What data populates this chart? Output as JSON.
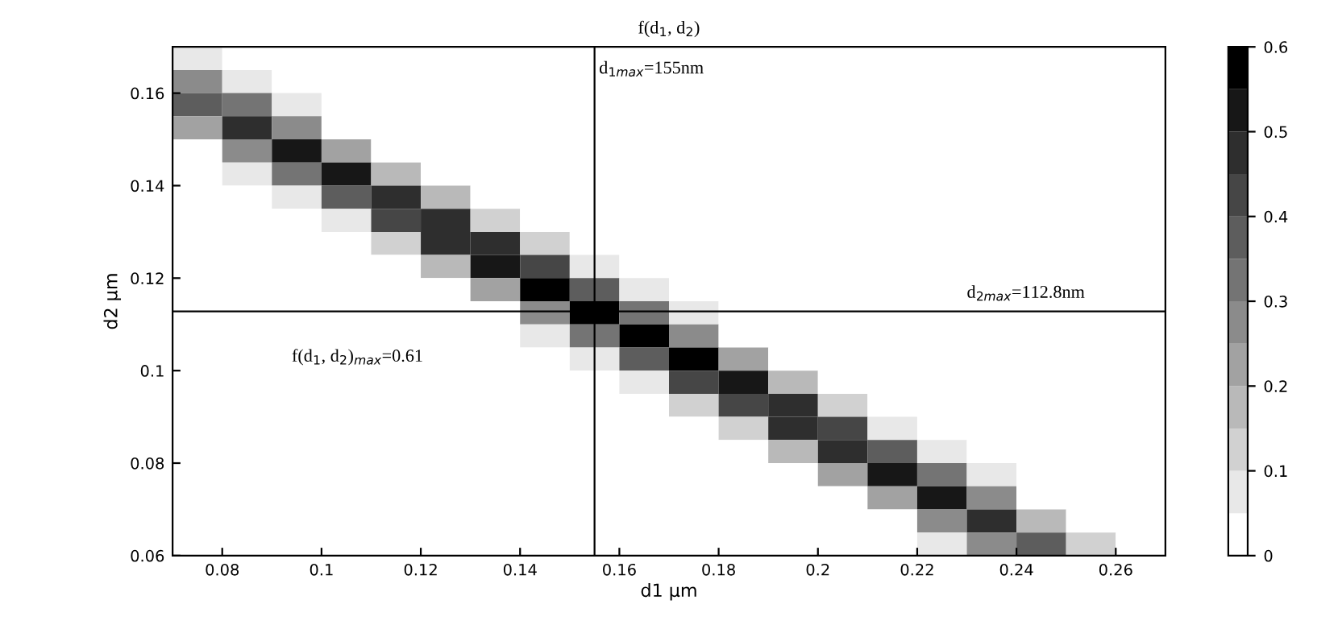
{
  "chart_data": {
    "type": "heatmap",
    "title": "f(d$_{1}$, d$_{2}$)",
    "xlabel": "d1 µm",
    "ylabel": "d2 µm",
    "x": [
      0.075,
      0.085,
      0.095,
      0.105,
      0.115,
      0.125,
      0.135,
      0.145,
      0.155,
      0.165,
      0.175,
      0.185,
      0.195,
      0.205,
      0.215,
      0.225,
      0.235,
      0.245,
      0.255,
      0.265
    ],
    "y": [
      0.1675,
      0.1625,
      0.1575,
      0.1525,
      0.1475,
      0.1425,
      0.1375,
      0.1325,
      0.1275,
      0.1225,
      0.1175,
      0.1125,
      0.1075,
      0.1025,
      0.0975,
      0.0925,
      0.0875,
      0.0825,
      0.0775,
      0.0725,
      0.0675,
      0.0625
    ],
    "cells": [
      [
        0.06,
        0,
        0,
        0,
        0,
        0,
        0,
        0,
        0,
        0,
        0,
        0,
        0,
        0,
        0,
        0,
        0,
        0,
        0,
        0
      ],
      [
        0.28,
        0.06,
        0,
        0,
        0,
        0,
        0,
        0,
        0,
        0,
        0,
        0,
        0,
        0,
        0,
        0,
        0,
        0,
        0,
        0
      ],
      [
        0.39,
        0.3,
        0.05,
        0,
        0,
        0,
        0,
        0,
        0,
        0,
        0,
        0,
        0,
        0,
        0,
        0,
        0,
        0,
        0,
        0
      ],
      [
        0.2,
        0.48,
        0.28,
        0.04,
        0,
        0,
        0,
        0,
        0,
        0,
        0,
        0,
        0,
        0,
        0,
        0,
        0,
        0,
        0,
        0
      ],
      [
        0.03,
        0.28,
        0.51,
        0.24,
        0.02,
        0,
        0,
        0,
        0,
        0,
        0,
        0,
        0,
        0,
        0,
        0,
        0,
        0,
        0,
        0
      ],
      [
        0,
        0.05,
        0.34,
        0.5,
        0.19,
        0.02,
        0,
        0,
        0,
        0,
        0,
        0,
        0,
        0,
        0,
        0,
        0,
        0,
        0,
        0
      ],
      [
        0,
        0,
        0.07,
        0.38,
        0.48,
        0.16,
        0.01,
        0,
        0,
        0,
        0,
        0,
        0,
        0,
        0,
        0,
        0,
        0,
        0,
        0
      ],
      [
        0,
        0,
        0,
        0.09,
        0.43,
        0.47,
        0.13,
        0.01,
        0,
        0,
        0,
        0,
        0,
        0,
        0,
        0,
        0,
        0,
        0,
        0
      ],
      [
        0,
        0,
        0,
        0.01,
        0.12,
        0.47,
        0.46,
        0.1,
        0,
        0,
        0,
        0,
        0,
        0,
        0,
        0,
        0,
        0,
        0,
        0
      ],
      [
        0,
        0,
        0,
        0,
        0.01,
        0.17,
        0.54,
        0.42,
        0.08,
        0,
        0,
        0,
        0,
        0,
        0,
        0,
        0,
        0,
        0,
        0
      ],
      [
        0,
        0,
        0,
        0,
        0,
        0.02,
        0.23,
        0.58,
        0.38,
        0.06,
        0,
        0,
        0,
        0,
        0,
        0,
        0,
        0,
        0,
        0
      ],
      [
        0,
        0,
        0,
        0,
        0,
        0,
        0.03,
        0.28,
        0.61,
        0.32,
        0.05,
        0,
        0,
        0,
        0,
        0,
        0,
        0,
        0,
        0
      ],
      [
        0,
        0,
        0,
        0,
        0,
        0,
        0,
        0.05,
        0.34,
        0.58,
        0.27,
        0.03,
        0,
        0,
        0,
        0,
        0,
        0,
        0,
        0
      ],
      [
        0,
        0,
        0,
        0,
        0,
        0,
        0,
        0,
        0.07,
        0.38,
        0.56,
        0.2,
        0.02,
        0,
        0,
        0,
        0,
        0,
        0,
        0
      ],
      [
        0,
        0,
        0,
        0,
        0,
        0,
        0,
        0,
        0,
        0.08,
        0.42,
        0.5,
        0.16,
        0.01,
        0,
        0,
        0,
        0,
        0,
        0
      ],
      [
        0,
        0,
        0,
        0,
        0,
        0,
        0,
        0,
        0,
        0,
        0.1,
        0.43,
        0.46,
        0.12,
        0.01,
        0,
        0,
        0,
        0,
        0
      ],
      [
        0,
        0,
        0,
        0,
        0,
        0,
        0,
        0,
        0,
        0,
        0.01,
        0.12,
        0.46,
        0.42,
        0.09,
        0,
        0,
        0,
        0,
        0
      ],
      [
        0,
        0,
        0,
        0,
        0,
        0,
        0,
        0,
        0,
        0,
        0,
        0.01,
        0.16,
        0.49,
        0.37,
        0.07,
        0,
        0,
        0,
        0
      ],
      [
        0,
        0,
        0,
        0,
        0,
        0,
        0,
        0,
        0,
        0,
        0,
        0,
        0.02,
        0.2,
        0.5,
        0.33,
        0.05,
        0,
        0,
        0
      ],
      [
        0,
        0,
        0,
        0,
        0,
        0,
        0,
        0,
        0,
        0,
        0,
        0,
        0,
        0.03,
        0.24,
        0.5,
        0.25,
        0.03,
        0,
        0
      ],
      [
        0,
        0,
        0,
        0,
        0,
        0,
        0,
        0,
        0,
        0,
        0,
        0,
        0,
        0,
        0.04,
        0.28,
        0.45,
        0.19,
        0.02,
        0
      ],
      [
        0,
        0,
        0,
        0,
        0,
        0,
        0,
        0,
        0,
        0,
        0,
        0,
        0,
        0,
        0,
        0.05,
        0.28,
        0.39,
        0.14,
        0.01
      ]
    ],
    "clim": [
      0,
      0.6
    ],
    "cticks": [
      0,
      0.1,
      0.2,
      0.3,
      0.4,
      0.5,
      0.6
    ],
    "xlim": [
      0.07,
      0.27
    ],
    "xticks": [
      0.08,
      0.1,
      0.12,
      0.14,
      0.16,
      0.18,
      0.2,
      0.22,
      0.24,
      0.26
    ],
    "ylim": [
      0.06,
      0.17
    ],
    "yticks": [
      0.06,
      0.08,
      0.1,
      0.12,
      0.14,
      0.16
    ],
    "ref_lines": [
      {
        "axis": "x",
        "value": 0.155,
        "label": "d$_{1max}$=155nm",
        "color": "#000000"
      },
      {
        "axis": "y",
        "value": 0.1128,
        "label": "d$_{2max}$=112.8nm",
        "color": "#000000"
      }
    ],
    "annotations": [
      "f(d$_{1}$, d$_{2}$)$_{max}$=0.61"
    ],
    "grid": false
  }
}
